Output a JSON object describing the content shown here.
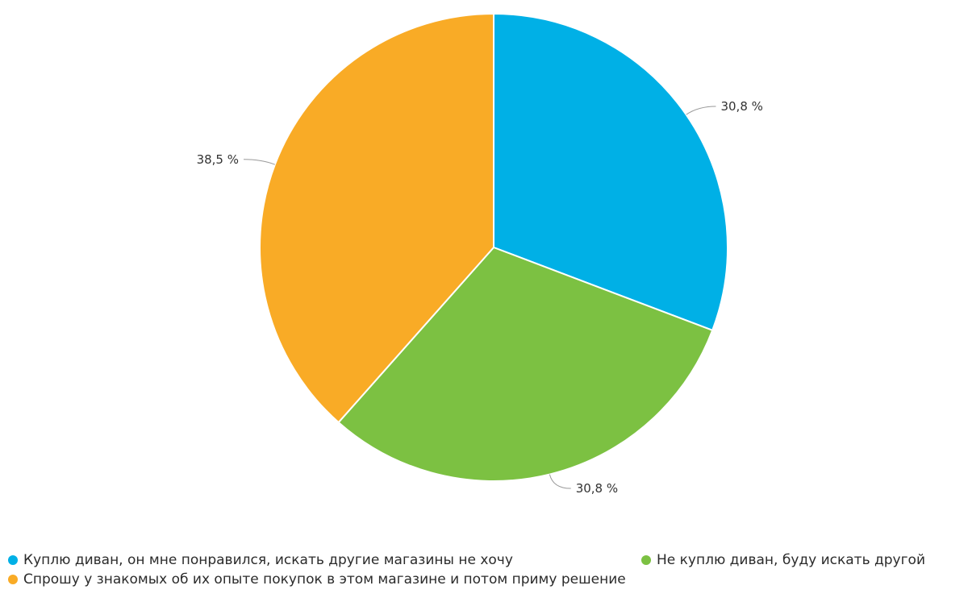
{
  "chart_data": {
    "type": "pie",
    "title": "",
    "categories": [
      "Куплю диван, он мне понравился, искать другие магазины не хочу",
      "Не куплю диван, буду искать другой",
      "Спрошу у знакомых об их опыте покупок в этом магазине и потом приму решение"
    ],
    "values": [
      30.8,
      30.8,
      38.5
    ],
    "data_labels": [
      "30,8 %",
      "30,8 %",
      "38,5 %"
    ],
    "colors": [
      "#00b0e6",
      "#7cc142",
      "#f9ab26"
    ],
    "legend_position": "bottom"
  }
}
